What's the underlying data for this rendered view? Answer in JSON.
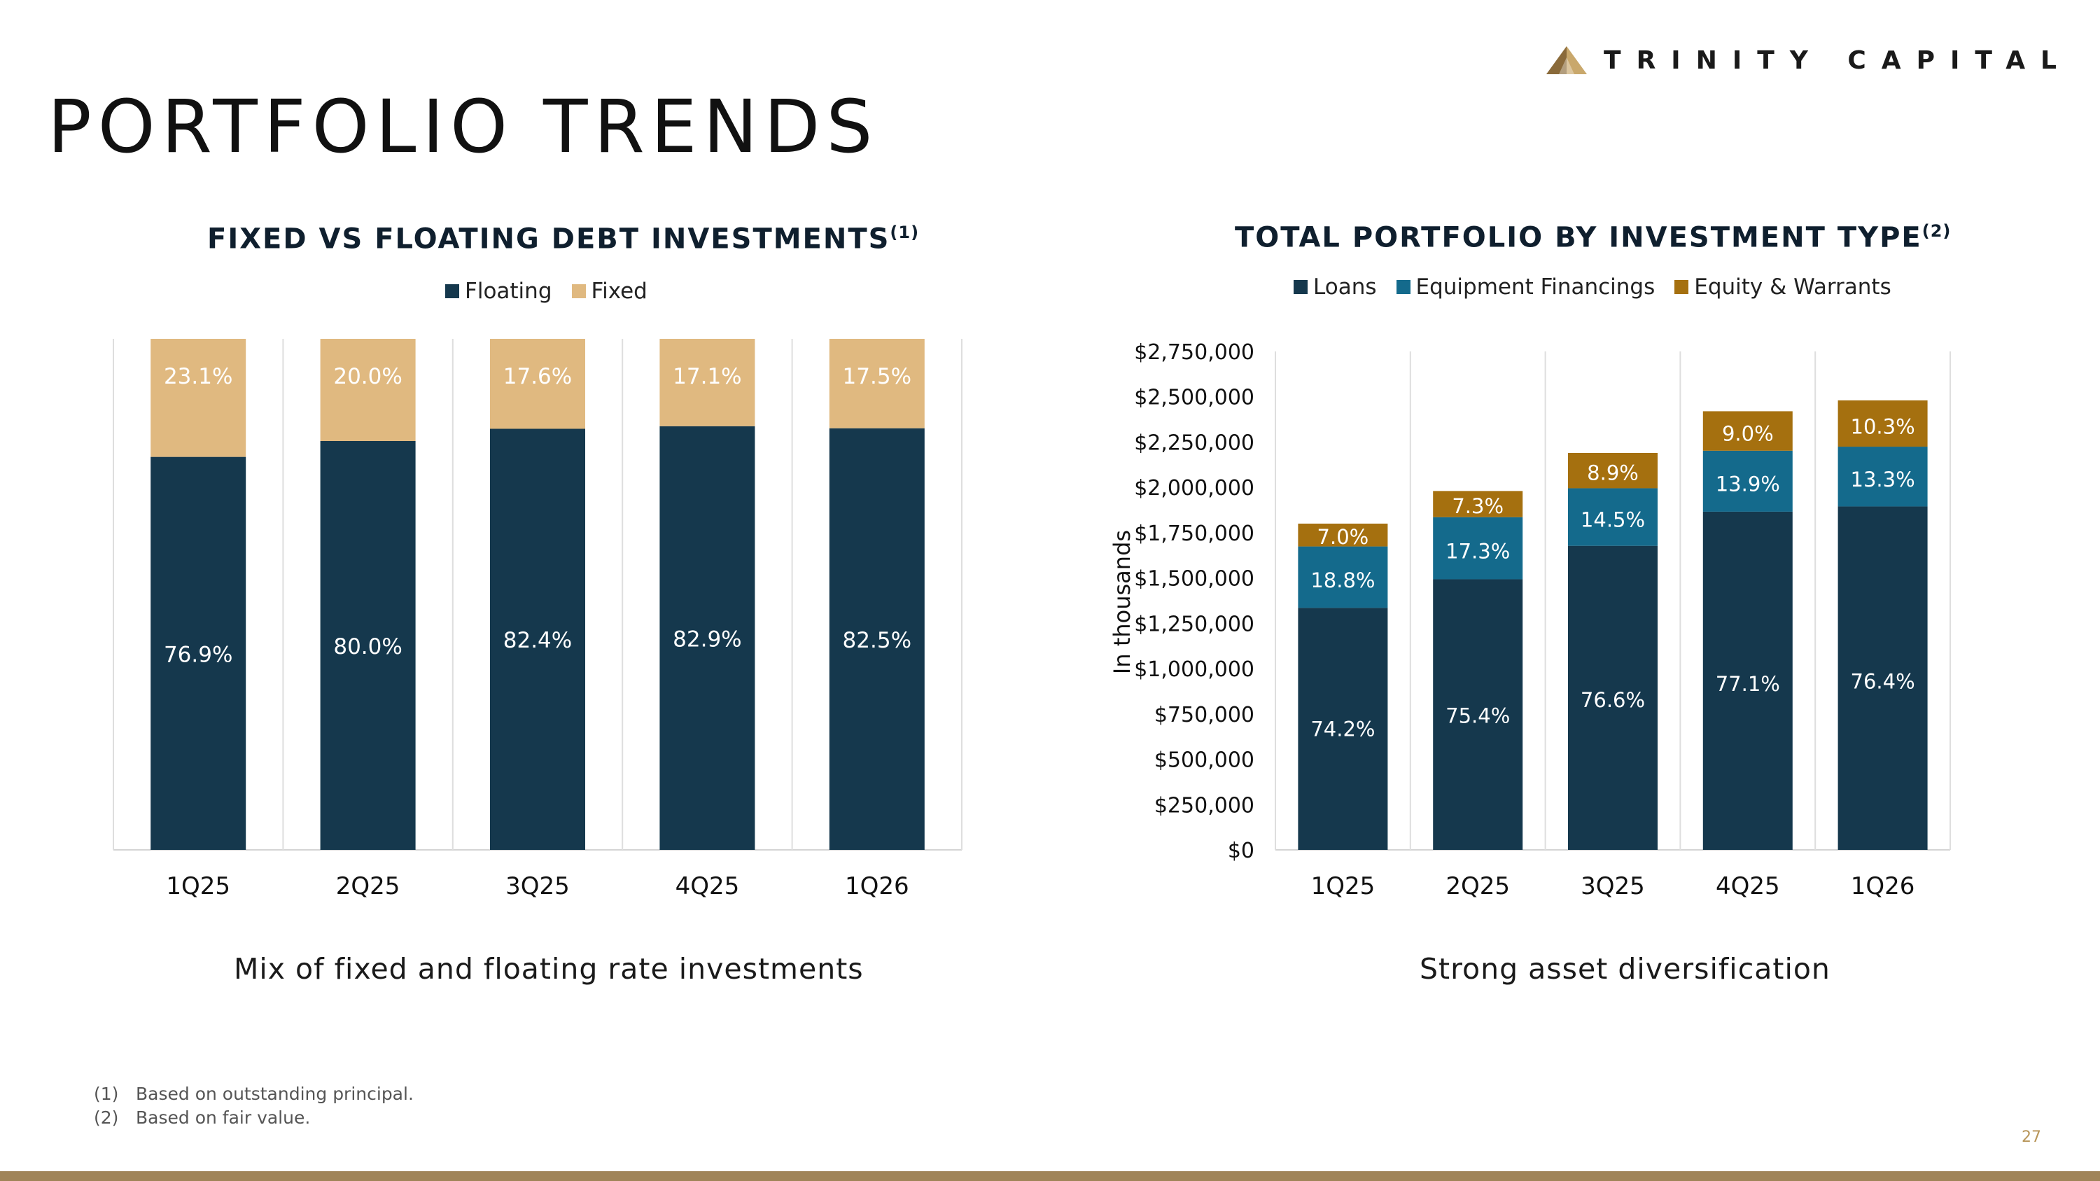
{
  "brand": {
    "name": "TRINITY CAPITAL",
    "logo_icon": "trinity-triangle-logo",
    "accent_color": "#a08458",
    "logo_colors": [
      "#8a6a3a",
      "#c9a86c"
    ]
  },
  "page": {
    "title": "PORTFOLIO TRENDS",
    "number": "27"
  },
  "left_chart": {
    "title": "FIXED VS FLOATING DEBT INVESTMENTS",
    "title_note": "(1)",
    "caption": "Mix of fixed and floating rate investments",
    "legend": [
      {
        "label": "Floating",
        "color": "#15384d"
      },
      {
        "label": "Fixed",
        "color": "#e0b980"
      }
    ]
  },
  "right_chart": {
    "title": "TOTAL PORTFOLIO BY INVESTMENT TYPE",
    "title_note": "(2)",
    "caption": "Strong asset diversification",
    "legend": [
      {
        "label": "Loans",
        "color": "#15384d"
      },
      {
        "label": "Equipment Financings",
        "color": "#146a8c"
      },
      {
        "label": "Equity & Warrants",
        "color": "#a5700f"
      }
    ]
  },
  "chart_data": [
    {
      "type": "bar",
      "stacked": true,
      "normalized": true,
      "title": "FIXED VS FLOATING DEBT INVESTMENTS",
      "categories": [
        "1Q25",
        "2Q25",
        "3Q25",
        "4Q25",
        "1Q26"
      ],
      "series": [
        {
          "name": "Floating",
          "color": "#15384d",
          "values": [
            76.9,
            80.0,
            82.4,
            82.9,
            82.5
          ],
          "labels": [
            "76.9%",
            "80.0%",
            "82.4%",
            "82.9%",
            "82.5%"
          ]
        },
        {
          "name": "Fixed",
          "color": "#e0b980",
          "values": [
            23.1,
            20.0,
            17.6,
            17.1,
            17.5
          ],
          "labels": [
            "23.1%",
            "20.0%",
            "17.6%",
            "17.1%",
            "17.5%"
          ]
        }
      ],
      "ylim": [
        0,
        100
      ],
      "grid": "vertical-separators",
      "legend_position": "top"
    },
    {
      "type": "bar",
      "stacked": true,
      "title": "TOTAL PORTFOLIO BY INVESTMENT TYPE",
      "ylabel": "In thousands",
      "categories": [
        "1Q25",
        "2Q25",
        "3Q25",
        "4Q25",
        "1Q26"
      ],
      "totals": [
        1800000,
        1980000,
        2190000,
        2420000,
        2480000
      ],
      "series": [
        {
          "name": "Loans",
          "color": "#15384d",
          "share": [
            74.2,
            75.4,
            76.6,
            77.1,
            76.4
          ],
          "labels": [
            "74.2%",
            "75.4%",
            "76.6%",
            "77.1%",
            "76.4%"
          ]
        },
        {
          "name": "Equipment Financings",
          "color": "#146a8c",
          "share": [
            18.8,
            17.3,
            14.5,
            13.9,
            13.3
          ],
          "labels": [
            "18.8%",
            "17.3%",
            "14.5%",
            "13.9%",
            "13.3%"
          ]
        },
        {
          "name": "Equity & Warrants",
          "color": "#a5700f",
          "share": [
            7.0,
            7.3,
            8.9,
            9.0,
            10.3
          ],
          "labels": [
            "7.0%",
            "7.3%",
            "8.9%",
            "9.0%",
            "10.3%"
          ]
        }
      ],
      "yticks": [
        "$0",
        "$250,000",
        "$500,000",
        "$750,000",
        "$1,000,000",
        "$1,250,000",
        "$1,500,000",
        "$1,750,000",
        "$2,000,000",
        "$2,250,000",
        "$2,500,000",
        "$2,750,000"
      ],
      "ylim": [
        0,
        2750000
      ],
      "grid": "vertical-separators",
      "legend_position": "top"
    }
  ],
  "footnotes": [
    {
      "num": "(1)",
      "text": "Based on outstanding principal."
    },
    {
      "num": "(2)",
      "text": "Based on fair value."
    }
  ]
}
